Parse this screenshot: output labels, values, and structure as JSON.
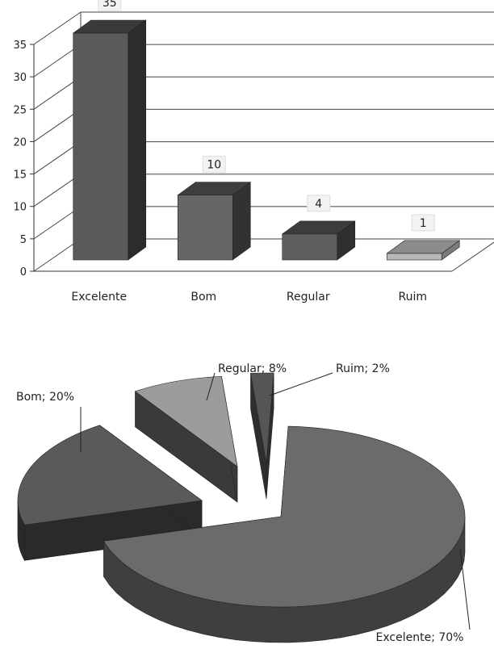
{
  "chart_data": [
    {
      "type": "bar",
      "categories": [
        "Excelente",
        "Bom",
        "Regular",
        "Ruim"
      ],
      "values": [
        35,
        10,
        4,
        1
      ],
      "ylim": [
        0,
        35
      ],
      "yticks": [
        0,
        5,
        10,
        15,
        20,
        25,
        30,
        35
      ],
      "grid": true,
      "three_d": true,
      "data_labels": [
        "35",
        "10",
        "4",
        "1"
      ],
      "colors": {
        "front": [
          "#5a5a5a",
          "#666666",
          "#5f5f5f",
          "#b8b8b8"
        ],
        "top": [
          "#3a3a3a",
          "#3e3e3e",
          "#3c3c3c",
          "#8c8c8c"
        ],
        "side": [
          "#2c2c2c",
          "#323232",
          "#2f2f2f",
          "#7a7a7a"
        ]
      }
    },
    {
      "type": "pie",
      "three_d": true,
      "categories": [
        "Excelente",
        "Bom",
        "Regular",
        "Ruim"
      ],
      "values": [
        70,
        20,
        8,
        2
      ],
      "labels": [
        "Excelente; 70%",
        "Bom; 20%",
        "Regular; 8%",
        "Ruim; 2%"
      ],
      "colors": {
        "top": [
          "#6b6b6b",
          "#5a5a5a",
          "#9c9c9c",
          "#555555"
        ],
        "side": [
          "#3f3f3f",
          "#2a2a2a",
          "#3a3a3a",
          "#2e2e2e"
        ]
      }
    }
  ]
}
